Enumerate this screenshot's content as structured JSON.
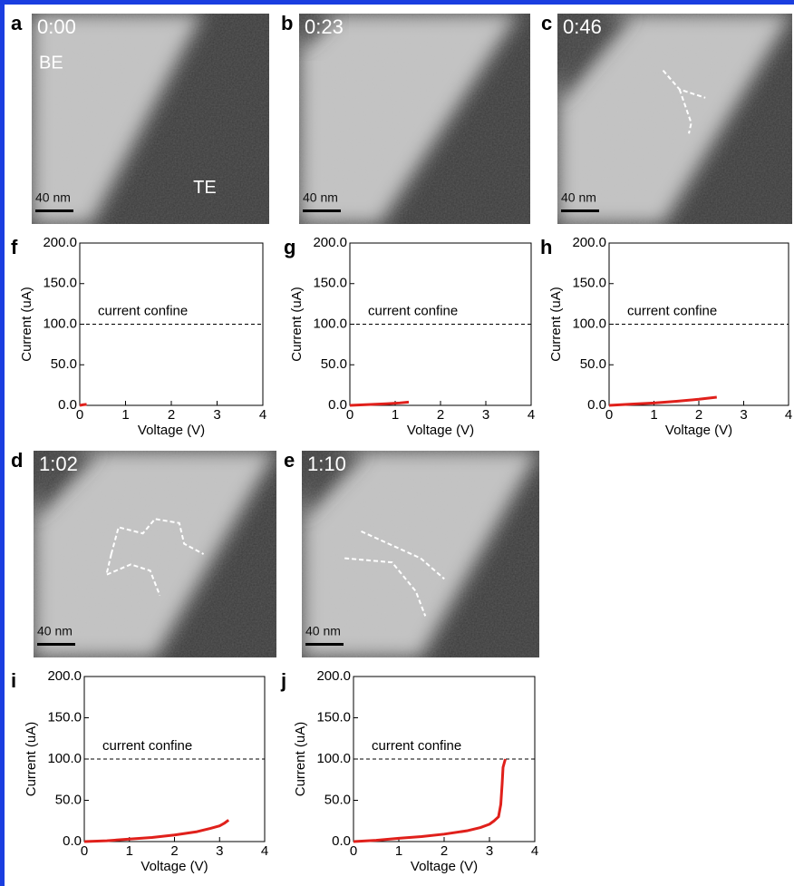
{
  "images": [
    {
      "letter": "a",
      "time": "0:00",
      "scale": "40 nm",
      "labels": [
        "BE",
        "TE"
      ]
    },
    {
      "letter": "b",
      "time": "0:23",
      "scale": "40 nm"
    },
    {
      "letter": "c",
      "time": "0:46",
      "scale": "40 nm"
    },
    {
      "letter": "d",
      "time": "1:02",
      "scale": "40 nm"
    },
    {
      "letter": "e",
      "time": "1:10",
      "scale": "40 nm"
    }
  ],
  "chart_data": [
    {
      "type": "line",
      "letter": "f",
      "xlabel": "Voltage (V)",
      "ylabel": "Current (uA)",
      "annotation": "current confine",
      "hline": 100,
      "x": [
        0,
        0.08,
        0.15
      ],
      "series": [
        {
          "color": "#e0201b",
          "values": [
            0,
            0.8,
            1.2
          ]
        }
      ],
      "xlim": [
        0,
        4
      ],
      "ylim": [
        0,
        200
      ],
      "xticks": [
        0,
        1,
        2,
        3,
        4
      ],
      "yticks": [
        {
          "value": 0,
          "label": "0.0"
        },
        {
          "value": 50,
          "label": "50.0"
        },
        {
          "value": 100,
          "label": "100.0"
        },
        {
          "value": 150,
          "label": "150.0"
        },
        {
          "value": 200,
          "label": "200.0"
        }
      ]
    },
    {
      "type": "line",
      "letter": "g",
      "xlabel": "Voltage (V)",
      "ylabel": "Current (uA)",
      "annotation": "current confine",
      "hline": 100,
      "x": [
        0,
        0.4,
        0.8,
        1.1,
        1.3
      ],
      "series": [
        {
          "color": "#e0201b",
          "values": [
            0,
            1,
            2,
            3,
            4
          ]
        }
      ],
      "xlim": [
        0,
        4
      ],
      "ylim": [
        0,
        200
      ],
      "xticks": [
        0,
        1,
        2,
        3,
        4
      ],
      "yticks": [
        {
          "value": 0,
          "label": "0.0"
        },
        {
          "value": 50,
          "label": "50.0"
        },
        {
          "value": 100,
          "label": "100.0"
        },
        {
          "value": 150,
          "label": "150.0"
        },
        {
          "value": 200,
          "label": "200.0"
        }
      ]
    },
    {
      "type": "line",
      "letter": "h",
      "xlabel": "Voltage (V)",
      "ylabel": "Current (uA)",
      "annotation": "current confine",
      "hline": 100,
      "x": [
        0,
        0.5,
        1,
        1.5,
        2,
        2.4
      ],
      "series": [
        {
          "color": "#e0201b",
          "values": [
            0,
            1.5,
            3,
            5,
            7.5,
            10
          ]
        }
      ],
      "xlim": [
        0,
        4
      ],
      "ylim": [
        0,
        200
      ],
      "xticks": [
        0,
        1,
        2,
        3,
        4
      ],
      "yticks": [
        {
          "value": 0,
          "label": "0.0"
        },
        {
          "value": 50,
          "label": "50.0"
        },
        {
          "value": 100,
          "label": "100.0"
        },
        {
          "value": 150,
          "label": "150.0"
        },
        {
          "value": 200,
          "label": "200.0"
        }
      ]
    },
    {
      "type": "line",
      "letter": "i",
      "xlabel": "Voltage (V)",
      "ylabel": "Current (uA)",
      "annotation": "current confine",
      "hline": 100,
      "x": [
        0,
        0.5,
        1,
        1.5,
        2,
        2.5,
        2.8,
        3,
        3.1,
        3.2
      ],
      "series": [
        {
          "color": "#e0201b",
          "values": [
            0,
            1,
            3,
            5,
            8,
            12,
            16,
            19,
            22,
            26
          ]
        }
      ],
      "xlim": [
        0,
        4
      ],
      "ylim": [
        0,
        200
      ],
      "xticks": [
        0,
        1,
        2,
        3,
        4
      ],
      "yticks": [
        {
          "value": 0,
          "label": "0.0"
        },
        {
          "value": 50,
          "label": "50.0"
        },
        {
          "value": 100,
          "label": "100.0"
        },
        {
          "value": 150,
          "label": "150.0"
        },
        {
          "value": 200,
          "label": "200.0"
        }
      ]
    },
    {
      "type": "line",
      "letter": "j",
      "xlabel": "Voltage (V)",
      "ylabel": "Current (uA)",
      "annotation": "current confine",
      "hline": 100,
      "x": [
        0,
        0.5,
        1,
        1.5,
        2,
        2.5,
        2.8,
        3,
        3.1,
        3.2,
        3.25,
        3.28,
        3.3,
        3.35
      ],
      "series": [
        {
          "color": "#e0201b",
          "values": [
            0,
            1.5,
            4,
            6,
            9,
            13,
            17,
            21,
            25,
            30,
            45,
            70,
            90,
            100
          ]
        }
      ],
      "xlim": [
        0,
        4
      ],
      "ylim": [
        0,
        200
      ],
      "xticks": [
        0,
        1,
        2,
        3,
        4
      ],
      "yticks": [
        {
          "value": 0,
          "label": "0.0"
        },
        {
          "value": 50,
          "label": "50.0"
        },
        {
          "value": 100,
          "label": "100.0"
        },
        {
          "value": 150,
          "label": "150.0"
        },
        {
          "value": 200,
          "label": "200.0"
        }
      ]
    }
  ]
}
